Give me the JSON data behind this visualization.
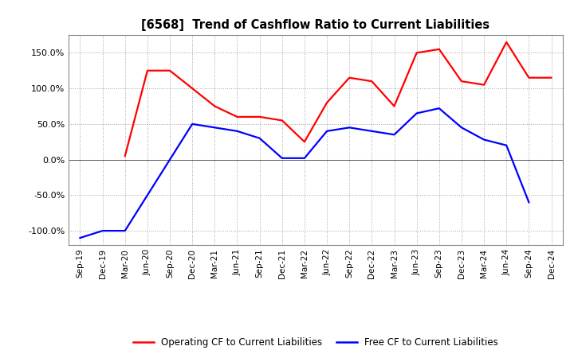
{
  "title": "[6568]  Trend of Cashflow Ratio to Current Liabilities",
  "x_labels": [
    "Sep-19",
    "Dec-19",
    "Mar-20",
    "Jun-20",
    "Sep-20",
    "Dec-20",
    "Mar-21",
    "Jun-21",
    "Sep-21",
    "Dec-21",
    "Mar-22",
    "Jun-22",
    "Sep-22",
    "Dec-22",
    "Mar-23",
    "Jun-23",
    "Sep-23",
    "Dec-23",
    "Mar-24",
    "Jun-24",
    "Sep-24",
    "Dec-24"
  ],
  "operating_cf": [
    null,
    null,
    5.0,
    125.0,
    125.0,
    100.0,
    75.0,
    60.0,
    60.0,
    55.0,
    25.0,
    80.0,
    115.0,
    110.0,
    75.0,
    150.0,
    155.0,
    110.0,
    105.0,
    165.0,
    115.0,
    115.0
  ],
  "free_cf": [
    -110.0,
    -100.0,
    -100.0,
    null,
    0.0,
    50.0,
    45.0,
    40.0,
    30.0,
    2.0,
    2.0,
    40.0,
    45.0,
    40.0,
    35.0,
    65.0,
    72.0,
    45.0,
    28.0,
    20.0,
    -60.0,
    null
  ],
  "ylim": [
    -120,
    175
  ],
  "yticks": [
    -100.0,
    -50.0,
    0.0,
    50.0,
    100.0,
    150.0
  ],
  "operating_color": "#FF0000",
  "free_color": "#0000FF",
  "background_color": "#FFFFFF",
  "grid_color": "#AAAAAA",
  "legend_operating": "Operating CF to Current Liabilities",
  "legend_free": "Free CF to Current Liabilities",
  "linewidth": 1.6
}
